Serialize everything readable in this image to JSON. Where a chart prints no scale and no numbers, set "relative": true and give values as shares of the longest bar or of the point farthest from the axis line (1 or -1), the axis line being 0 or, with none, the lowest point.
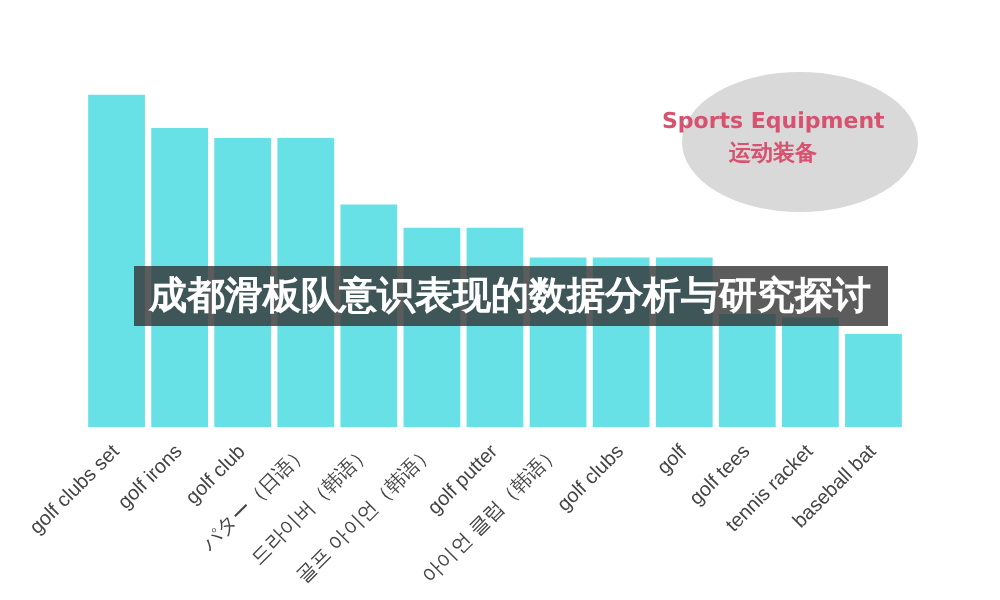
{
  "chart_data": {
    "type": "bar",
    "title": "成都滑板队意识表现的数据分析与研究探讨",
    "relative": true,
    "categories": [
      "golf clubs set",
      "golf irons",
      "golf club",
      "パター（日语）",
      "드라이버（韩语）",
      "골프 아이언（韩语）",
      "golf putter",
      "아이언 클럽（韩语）",
      "golf clubs",
      "golf",
      "golf tees",
      "tennis racket",
      "baseball bat"
    ],
    "values": [
      1,
      0.9,
      0.87,
      0.87,
      0.67,
      0.6,
      0.6,
      0.51,
      0.51,
      0.51,
      0.34,
      0.33,
      0.28
    ],
    "color": "#68e1e6",
    "annotations": [
      "Sports Equipment",
      "运动装备"
    ]
  }
}
